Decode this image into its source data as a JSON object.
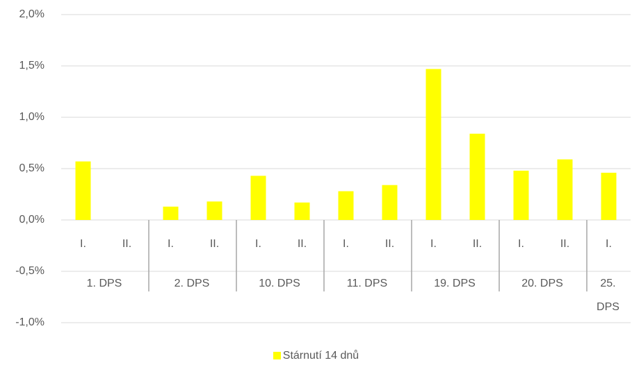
{
  "chart_data": {
    "type": "bar",
    "groups": [
      {
        "label": "1. DPS",
        "categories": [
          "I.",
          "II."
        ]
      },
      {
        "label": "2. DPS",
        "categories": [
          "I.",
          "II."
        ]
      },
      {
        "label": "10. DPS",
        "categories": [
          "I.",
          "II."
        ]
      },
      {
        "label": "11. DPS",
        "categories": [
          "I.",
          "II."
        ]
      },
      {
        "label": "19. DPS",
        "categories": [
          "I.",
          "II."
        ]
      },
      {
        "label": "20. DPS",
        "categories": [
          "I.",
          "II."
        ]
      },
      {
        "label": "25. DPS",
        "categories": [
          "I."
        ]
      }
    ],
    "series": [
      {
        "name": "Stárnutí 14 dnů",
        "color": "#ffff00",
        "values": [
          0.57,
          0,
          0.13,
          0.18,
          0.43,
          0.17,
          0.28,
          0.34,
          1.47,
          0.84,
          0.48,
          0.59,
          0.46
        ]
      }
    ],
    "ylim": [
      -1.0,
      2.0
    ],
    "yticks": [
      {
        "value": -1.0,
        "label": "-1,0%"
      },
      {
        "value": -0.5,
        "label": "-0,5%"
      },
      {
        "value": 0,
        "label": "0,0%"
      },
      {
        "value": 0.5,
        "label": "0,5%"
      },
      {
        "value": 1.0,
        "label": "1,0%"
      },
      {
        "value": 1.5,
        "label": "1,5%"
      },
      {
        "value": 2.0,
        "label": "2,0%"
      }
    ],
    "grid": true,
    "legend": "bottom"
  }
}
